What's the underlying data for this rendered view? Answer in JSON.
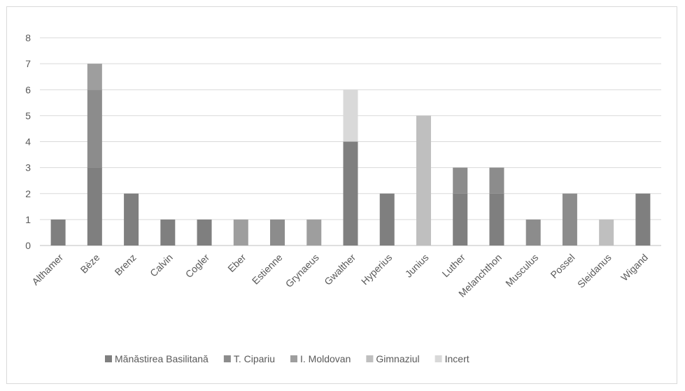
{
  "chart_data": {
    "type": "bar",
    "stacked": true,
    "title": "",
    "xlabel": "",
    "ylabel": "",
    "ylim": [
      0,
      8
    ],
    "yticks": [
      0,
      1,
      2,
      3,
      4,
      5,
      6,
      7,
      8
    ],
    "grid": true,
    "legend_position": "bottom",
    "categories": [
      "Althamer",
      "Bèze",
      "Brenz",
      "Calvin",
      "Cogler",
      "Eber",
      "Estienne",
      "Grynaeus",
      "Gwalther",
      "Hyperius",
      "Junius",
      "Luther",
      "Melanchthon",
      "Musculus",
      "Possel",
      "Sleidanus",
      "Wigand"
    ],
    "series": [
      {
        "name": "Mănăstirea Basilitană",
        "color": "#7f7f7f",
        "values": [
          1,
          3,
          2,
          1,
          1,
          0,
          0,
          0,
          4,
          2,
          0,
          2,
          2,
          0,
          0,
          0,
          2
        ]
      },
      {
        "name": "T. Cipariu",
        "color": "#8c8c8c",
        "values": [
          0,
          3,
          0,
          0,
          0,
          0,
          1,
          0,
          0,
          0,
          0,
          1,
          1,
          1,
          2,
          0,
          0
        ]
      },
      {
        "name": "I. Moldovan",
        "color": "#9e9e9e",
        "values": [
          0,
          1,
          0,
          0,
          0,
          1,
          0,
          1,
          0,
          0,
          0,
          0,
          0,
          0,
          0,
          0,
          0
        ]
      },
      {
        "name": "Gimnaziul",
        "color": "#bfbfbf",
        "values": [
          0,
          0,
          0,
          0,
          0,
          0,
          0,
          0,
          0,
          0,
          5,
          0,
          0,
          0,
          0,
          1,
          0
        ]
      },
      {
        "name": "Incert",
        "color": "#d9d9d9",
        "values": [
          0,
          0,
          0,
          0,
          0,
          0,
          0,
          0,
          2,
          0,
          0,
          0,
          0,
          0,
          0,
          0,
          0
        ]
      }
    ]
  }
}
